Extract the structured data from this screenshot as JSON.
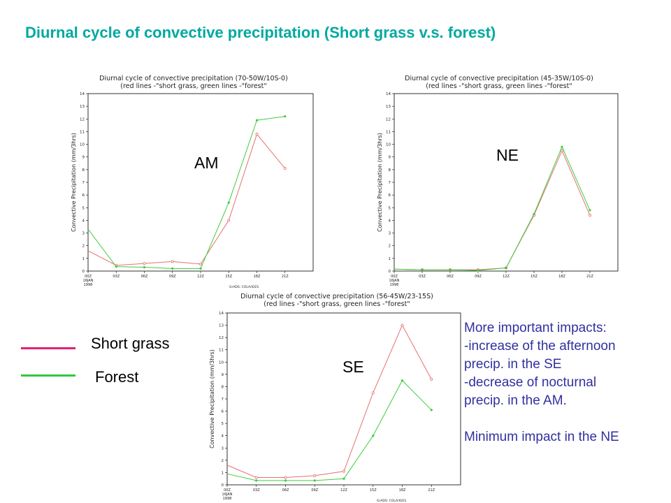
{
  "page": {
    "title": "Diurnal cycle of convective precipitation (Short grass v.s. forest)"
  },
  "legend": {
    "items": [
      {
        "label": "Short grass",
        "color": "#e0207a"
      },
      {
        "label": "Forest",
        "color": "#30c840"
      }
    ]
  },
  "notes": {
    "lines": [
      "More important impacts:",
      "-increase of the afternoon",
      "precip. in the SE",
      "-decrease of nocturnal",
      "precip. in the AM."
    ],
    "summary": "Minimum impact in the NE"
  },
  "chart_data": [
    {
      "type": "line",
      "region": "AM",
      "title": "Diurnal cycle of convective precipitation (70-50W/10S-0)",
      "subtitle": "(red lines -\"short grass, green lines -\"forest\"",
      "ylabel": "Convective Precipitation (mm/3hrs)",
      "ylim": [
        0,
        14
      ],
      "yticks": [
        0,
        1,
        2,
        3,
        4,
        5,
        6,
        7,
        8,
        9,
        10,
        11,
        12,
        13,
        14
      ],
      "categories": [
        "00Z 16JAN 1998",
        "03Z",
        "06Z",
        "09Z",
        "12Z",
        "15Z",
        "18Z",
        "21Z"
      ],
      "credit": "GrADS: COLA/IGES",
      "series": [
        {
          "name": "short grass",
          "color": "#e87070",
          "values": [
            1.6,
            0.45,
            0.6,
            0.75,
            0.55,
            4.0,
            10.8,
            8.1
          ]
        },
        {
          "name": "forest",
          "color": "#40cc40",
          "values": [
            3.3,
            0.35,
            0.3,
            0.2,
            0.2,
            5.4,
            11.9,
            12.2
          ]
        }
      ]
    },
    {
      "type": "line",
      "region": "NE",
      "title": "Diurnal cycle of convective precipitation (45-35W/10S-0)",
      "subtitle": "(red lines -\"short grass, green lines -\"forest\"",
      "ylabel": "Convective Precipitation (mm/3hrs)",
      "ylim": [
        0,
        14
      ],
      "yticks": [
        0,
        1,
        2,
        3,
        4,
        5,
        6,
        7,
        8,
        9,
        10,
        11,
        12,
        13,
        14
      ],
      "categories": [
        "00Z 16JAN 1998",
        "03Z",
        "06Z",
        "09Z",
        "12Z",
        "15Z",
        "18Z",
        "21Z"
      ],
      "credit": "",
      "series": [
        {
          "name": "short grass",
          "color": "#e87070",
          "values": [
            0.15,
            0.1,
            0.1,
            0.1,
            0.25,
            4.4,
            9.5,
            4.4
          ]
        },
        {
          "name": "forest",
          "color": "#40cc40",
          "values": [
            0.15,
            0.1,
            0.1,
            0.05,
            0.25,
            4.5,
            9.8,
            4.8
          ]
        }
      ]
    },
    {
      "type": "line",
      "region": "SE",
      "title": "Diurnal cycle of convective precipitation (56-45W/23-15S)",
      "subtitle": "(red lines -\"short grass, green lines -\"forest\"",
      "ylabel": "Convective Precipitation (mm/3hrs)",
      "ylim": [
        0,
        14
      ],
      "yticks": [
        0,
        1,
        2,
        3,
        4,
        5,
        6,
        7,
        8,
        9,
        10,
        11,
        12,
        13,
        14
      ],
      "categories": [
        "00Z 16JAN 1998",
        "03Z",
        "06Z",
        "09Z",
        "12Z",
        "15Z",
        "18Z",
        "21Z"
      ],
      "credit": "GrADS: COLA/IGES",
      "series": [
        {
          "name": "short grass",
          "color": "#e87070",
          "values": [
            1.6,
            0.6,
            0.6,
            0.75,
            1.1,
            7.5,
            13.0,
            8.6
          ]
        },
        {
          "name": "forest",
          "color": "#40cc40",
          "values": [
            0.9,
            0.35,
            0.35,
            0.35,
            0.5,
            4.0,
            8.5,
            6.1
          ]
        }
      ]
    }
  ]
}
